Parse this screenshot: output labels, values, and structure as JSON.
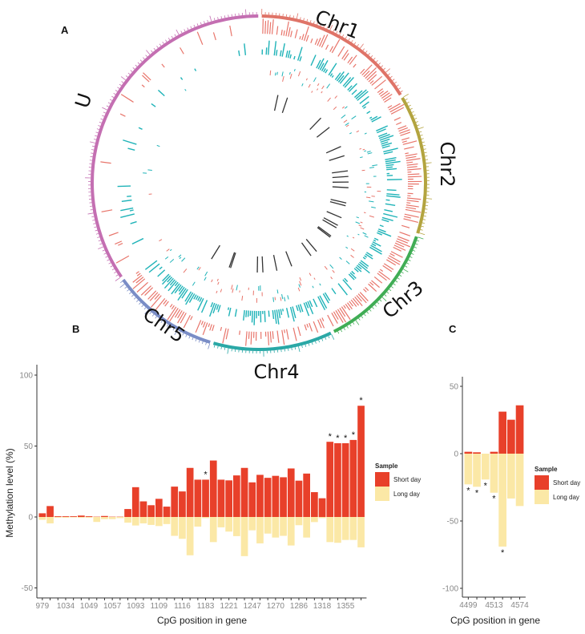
{
  "panels": {
    "a": "A",
    "b": "B",
    "c": "C"
  },
  "colors": {
    "short_day": "#e8402a",
    "long_day": "#fbe8a6",
    "track_red": "#e8756b",
    "track_teal": "#1fb3b8",
    "track_black": "#333333"
  },
  "circos": {
    "chromosomes": [
      {
        "name": "Chr1",
        "color": "#df7468",
        "relative_length": 58
      },
      {
        "name": "Chr2",
        "color": "#b3a43f",
        "relative_length": 49
      },
      {
        "name": "Chr3",
        "color": "#40ad55",
        "relative_length": 45
      },
      {
        "name": "Chr4",
        "color": "#2aa8a6",
        "relative_length": 42
      },
      {
        "name": "Chr5",
        "color": "#7a8dc6",
        "relative_length": 38
      },
      {
        "name": "U",
        "color": "#c46fb2",
        "relative_length": 126
      }
    ]
  },
  "chart_data": [
    {
      "panel": "B",
      "type": "bar",
      "ylabel": "Methylation level (%)",
      "xlabel": "CpG position in gene",
      "ylim": [
        -57,
        107
      ],
      "yticks": [
        -50,
        0,
        50,
        100
      ],
      "xtick_labels": [
        "979",
        "1034",
        "1049",
        "1057",
        "1093",
        "1109",
        "1116",
        "1183",
        "1221",
        "1247",
        "1270",
        "1286",
        "1318",
        "1355"
      ],
      "grid": false,
      "legend": {
        "title": "Sample",
        "position": "right",
        "entries": [
          "Short day",
          "Long day"
        ]
      },
      "series": [
        {
          "name": "Short day",
          "values": [
            2.6,
            7.7,
            0.5,
            0.5,
            0.5,
            1,
            0.5,
            0.2,
            0.7,
            0.2,
            0.2,
            5.6,
            21,
            11,
            8.3,
            12.8,
            7.3,
            21.4,
            18,
            34.6,
            26.3,
            26.3,
            39.8,
            26.3,
            25.8,
            29.3,
            34.6,
            24.4,
            29.7,
            27.6,
            29,
            28,
            34.2,
            25.6,
            30.6,
            17.5,
            13.2,
            53,
            52,
            52,
            54.3,
            78.4
          ]
        },
        {
          "name": "Long day",
          "values": [
            -2,
            -4.5,
            -0.5,
            -0.5,
            -0.3,
            -0.5,
            -0.5,
            -3.5,
            -1.5,
            -1.5,
            -0.8,
            -4,
            -6,
            -4.5,
            -5.6,
            -6.4,
            -5,
            -13.3,
            -15.4,
            -27,
            -6.8,
            -0.8,
            -17.7,
            -7.3,
            -10.3,
            -13.5,
            -27.6,
            -9.4,
            -18.6,
            -11.7,
            -14.5,
            -13.3,
            -20.1,
            -5.8,
            -14.5,
            -3.6,
            -0.8,
            -17.7,
            -18.2,
            -16.2,
            -16.2,
            -21.4
          ]
        }
      ],
      "significant_bars": [
        22,
        38,
        39,
        40,
        41,
        42
      ],
      "marker": "*"
    },
    {
      "panel": "C",
      "type": "bar",
      "ylabel": "",
      "xlabel": "CpG position in gene",
      "ylim": [
        -106,
        57
      ],
      "yticks": [
        -100,
        -50,
        0,
        50
      ],
      "xtick_labels": [
        "4499",
        "4513",
        "4574"
      ],
      "grid": false,
      "legend": {
        "title": "Sample",
        "position": "right",
        "entries": [
          "Short day",
          "Long day"
        ]
      },
      "series": [
        {
          "name": "Short day",
          "values": [
            1.4,
            1,
            0,
            1.4,
            31.2,
            25.2,
            35.9
          ]
        },
        {
          "name": "Long day",
          "values": [
            -22.8,
            -24.6,
            -19.2,
            -29,
            -69,
            -33.3,
            -38.9
          ]
        }
      ],
      "significant_bars": [
        1,
        2,
        3,
        4,
        5
      ],
      "marker": "*"
    }
  ]
}
